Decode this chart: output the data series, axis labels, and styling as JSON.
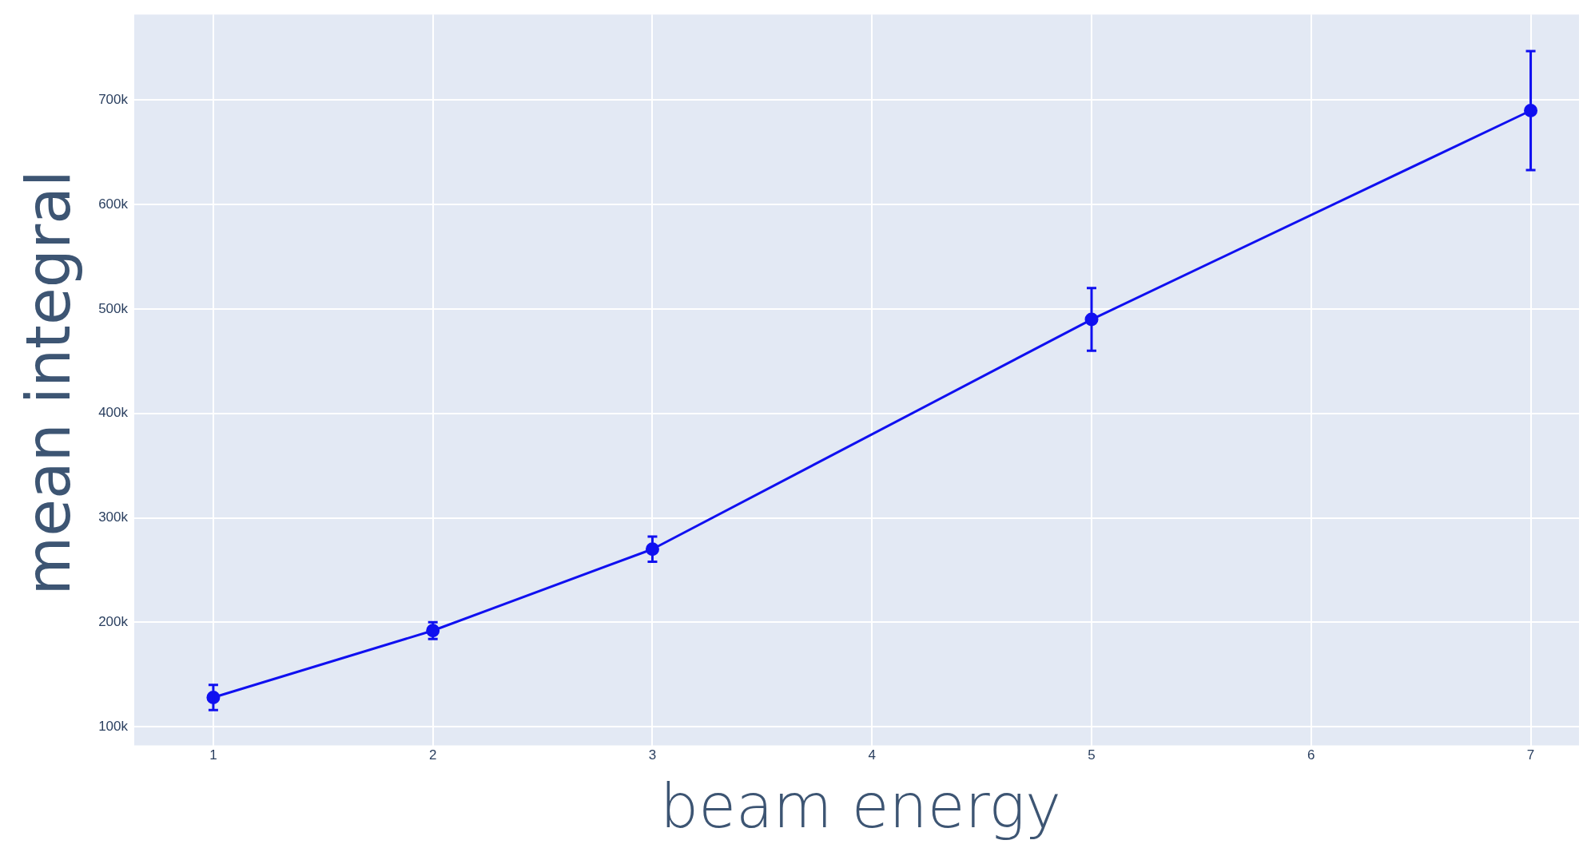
{
  "chart_data": {
    "type": "line",
    "xlabel": "beam energy",
    "ylabel": "mean integral",
    "x": [
      1,
      2,
      3,
      5,
      7
    ],
    "series": [
      {
        "color": "#1010f0",
        "values": [
          128000,
          192000,
          270000,
          490000,
          690000
        ],
        "errors": [
          12000,
          8000,
          12000,
          30000,
          57000
        ]
      }
    ],
    "xlim": [
      0.64,
      7.22
    ],
    "xticks": [
      1,
      2,
      3,
      4,
      5,
      6,
      7
    ],
    "ylim": [
      82000,
      782000
    ],
    "yticks": [
      {
        "value": 100000,
        "label": "100k"
      },
      {
        "value": 200000,
        "label": "200k"
      },
      {
        "value": 300000,
        "label": "300k"
      },
      {
        "value": 400000,
        "label": "400k"
      },
      {
        "value": 500000,
        "label": "500k"
      },
      {
        "value": 600000,
        "label": "600k"
      },
      {
        "value": 700000,
        "label": "700k"
      }
    ],
    "grid": true,
    "marker": "circle",
    "line_style": "solid",
    "legend": false
  }
}
